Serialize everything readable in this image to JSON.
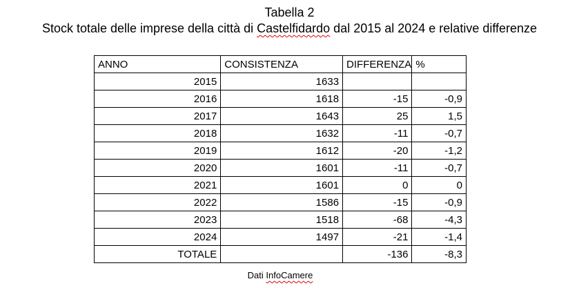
{
  "title": "Tabella 2",
  "subtitle": {
    "before": "Stock totale delle imprese della città di ",
    "misspelled_word": "Castelfidardo",
    "after": " dal 2015 al 2024 e relative differenze"
  },
  "table": {
    "headers": [
      "ANNO",
      "CONSISTENZA",
      "DIFFERENZA",
      "%"
    ],
    "rows": [
      {
        "anno": "2015",
        "consistenza": "1633",
        "differenza": "",
        "pct": ""
      },
      {
        "anno": "2016",
        "consistenza": "1618",
        "differenza": "-15",
        "pct": "-0,9"
      },
      {
        "anno": "2017",
        "consistenza": "1643",
        "differenza": "25",
        "pct": "1,5"
      },
      {
        "anno": "2018",
        "consistenza": "1632",
        "differenza": "-11",
        "pct": "-0,7"
      },
      {
        "anno": "2019",
        "consistenza": "1612",
        "differenza": "-20",
        "pct": "-1,2"
      },
      {
        "anno": "2020",
        "consistenza": "1601",
        "differenza": "-11",
        "pct": "-0,7"
      },
      {
        "anno": "2021",
        "consistenza": "1601",
        "differenza": "0",
        "pct": "0"
      },
      {
        "anno": "2022",
        "consistenza": "1586",
        "differenza": "-15",
        "pct": "-0,9"
      },
      {
        "anno": "2023",
        "consistenza": "1518",
        "differenza": "-68",
        "pct": "-4,3"
      },
      {
        "anno": "2024",
        "consistenza": "1497",
        "differenza": "-21",
        "pct": "-1,4"
      },
      {
        "anno": "TOTALE",
        "consistenza": "",
        "differenza": "-136",
        "pct": "-8,3"
      }
    ]
  },
  "footer": {
    "before": "Dati ",
    "misspelled_word": "InfoCamere"
  },
  "colors": {
    "text": "#000000",
    "table_border": "#000000",
    "spellcheck_underline": "#dd0000",
    "background": "#ffffff"
  }
}
